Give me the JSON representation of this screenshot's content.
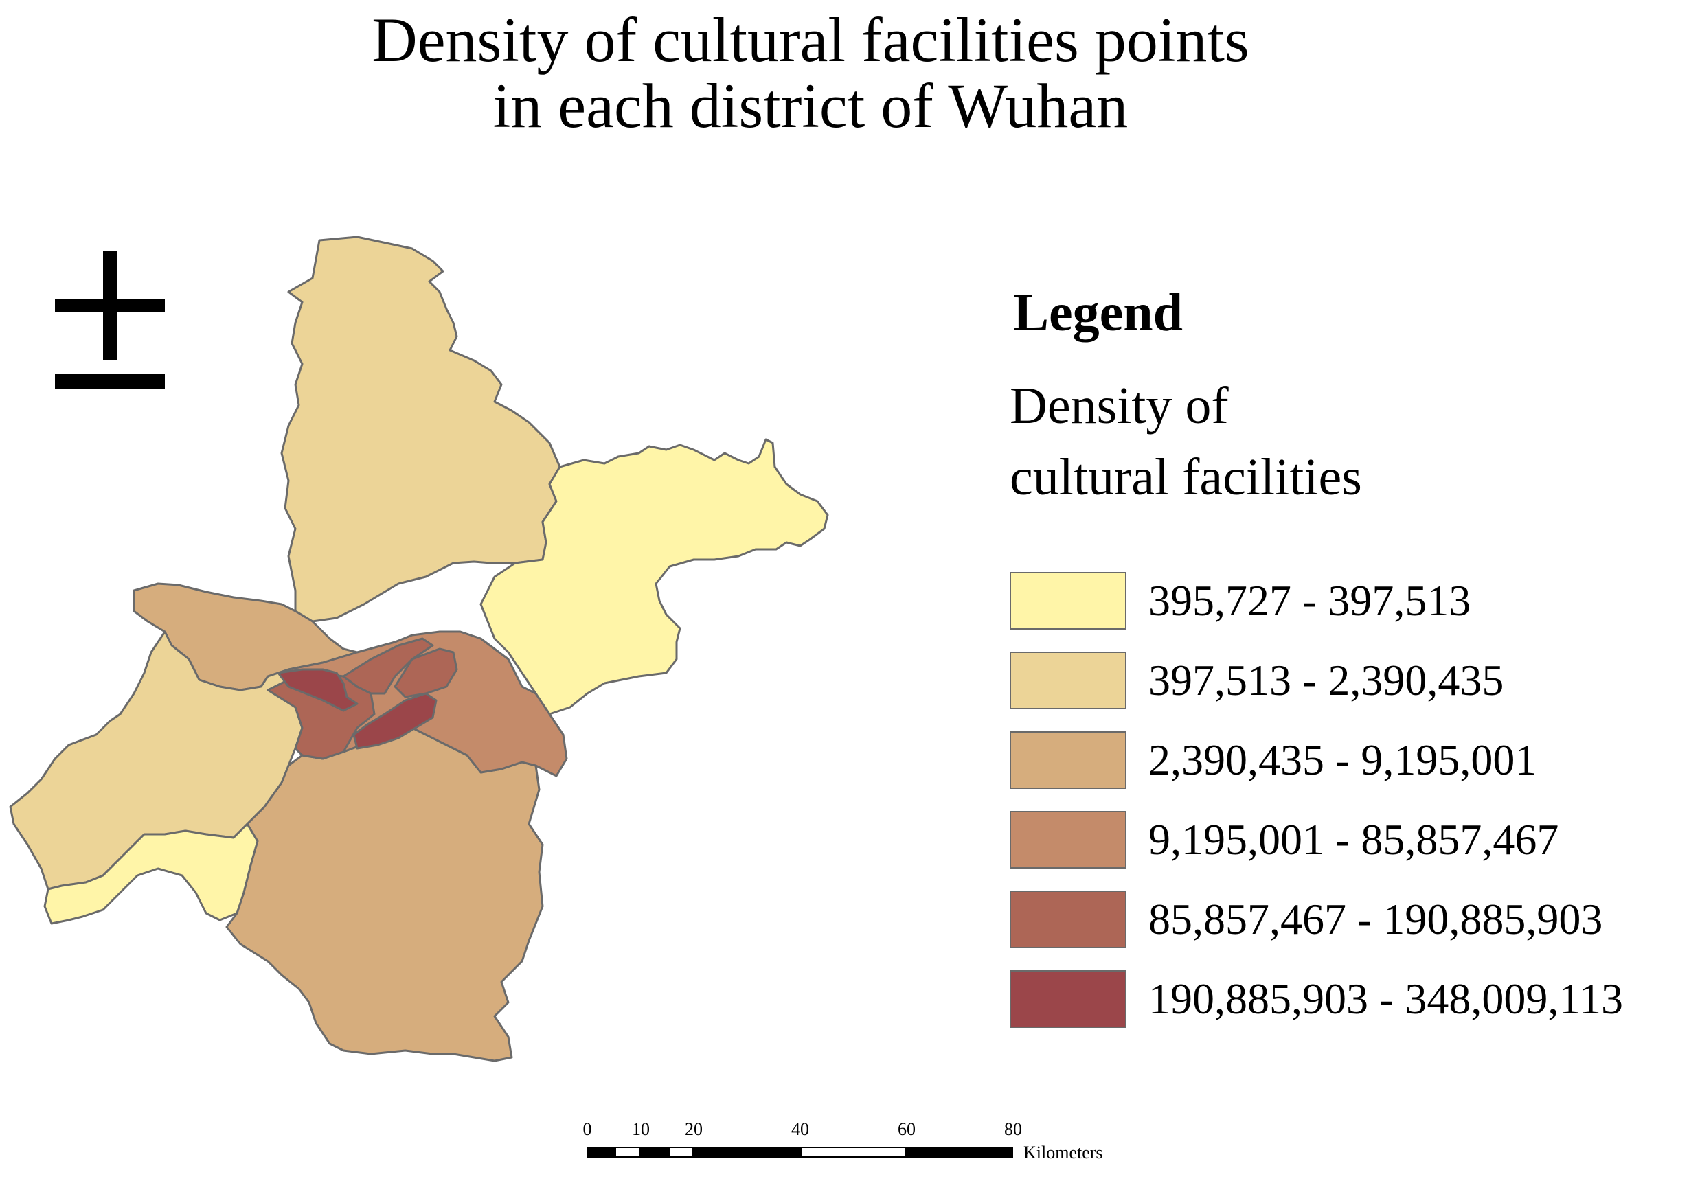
{
  "title": {
    "line1": "Density of cultural facilities points",
    "line2": "in each district of Wuhan"
  },
  "north_arrow_icon": "plus-minus-north-arrow-icon",
  "legend": {
    "heading": "Legend",
    "field_line1": "Density of",
    "field_line2": "cultural facilities",
    "classes": [
      {
        "label": "395,727 - 397,513",
        "color": "#fff5a8"
      },
      {
        "label": "397,513 - 2,390,435",
        "color": "#ecd497"
      },
      {
        "label": "2,390,435 - 9,195,001",
        "color": "#d6ad7d"
      },
      {
        "label": "9,195,001 - 85,857,467",
        "color": "#c48b6a"
      },
      {
        "label": "85,857,467 - 190,885,903",
        "color": "#ad6656"
      },
      {
        "label": "190,885,903 - 348,009,113",
        "color": "#9b464a"
      }
    ]
  },
  "scale_bar": {
    "ticks": [
      "0",
      "10",
      "20",
      "40",
      "60",
      "80"
    ],
    "unit": "Kilometers"
  }
}
